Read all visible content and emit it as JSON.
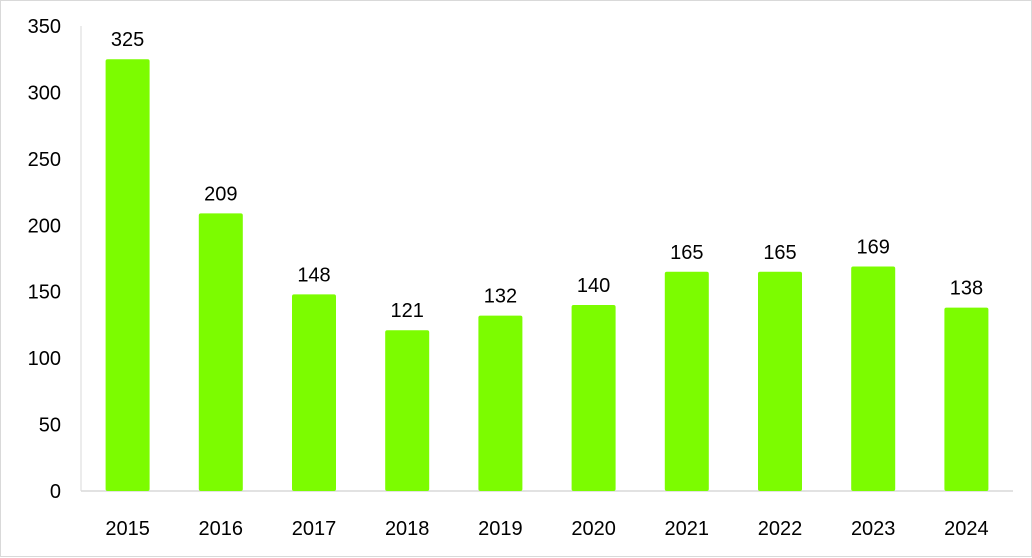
{
  "chart_data": {
    "type": "bar",
    "title": "",
    "xlabel": "",
    "ylabel": "",
    "categories": [
      "2015",
      "2016",
      "2017",
      "2018",
      "2019",
      "2020",
      "2021",
      "2022",
      "2023",
      "2024"
    ],
    "values": [
      325,
      209,
      148,
      121,
      132,
      140,
      165,
      165,
      169,
      138
    ],
    "ylim": [
      0,
      350
    ],
    "yticks": [
      0,
      50,
      100,
      150,
      200,
      250,
      300,
      350
    ],
    "grid": false,
    "legend": "none",
    "data_labels": true,
    "colors": {
      "bar": "#7cfc00",
      "axis": "#d9d9d9",
      "text": "#000000"
    }
  }
}
